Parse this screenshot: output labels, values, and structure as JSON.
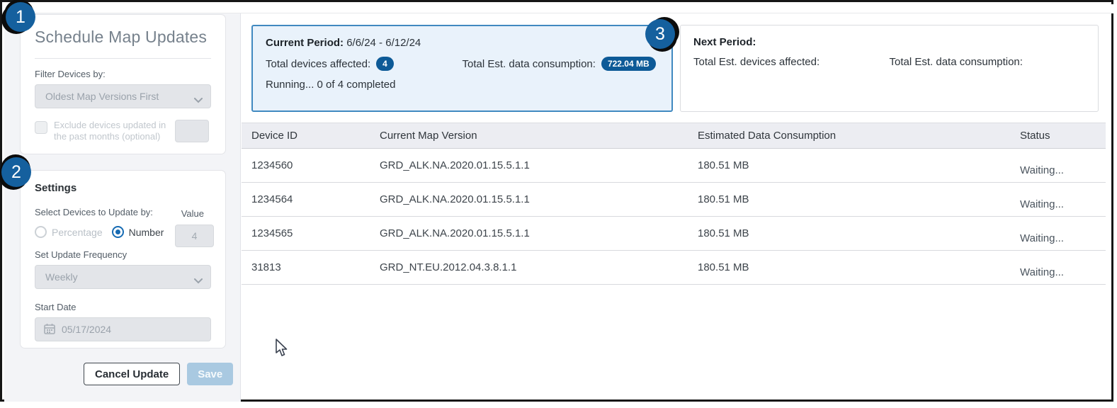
{
  "callouts": [
    "1",
    "2",
    "3"
  ],
  "sidebar": {
    "title": "Schedule Map Updates",
    "filter": {
      "label": "Filter Devices by:",
      "dropdown_value": "Oldest Map Versions First",
      "exclude_checkbox_label": "Exclude devices updated in the past months (optional)"
    },
    "settings": {
      "heading": "Settings",
      "select_label": "Select Devices to Update by:",
      "value_label": "Value",
      "radio_percentage": "Percentage",
      "radio_number": "Number",
      "value_input": "4",
      "frequency_label": "Set Update Frequency",
      "frequency_value": "Weekly",
      "start_date_label": "Start Date",
      "start_date_value": "05/17/2024"
    },
    "buttons": {
      "cancel": "Cancel Update",
      "save": "Save"
    }
  },
  "main": {
    "current_period": {
      "label": "Current Period:",
      "range": "6/6/24 - 6/12/24",
      "devices_label": "Total devices affected:",
      "devices_badge": "4",
      "consumption_label": "Total Est. data consumption:",
      "consumption_badge": "722.04 MB",
      "running": "Running... 0 of 4 completed"
    },
    "next_period": {
      "label": "Next Period:",
      "devices_label": "Total Est. devices affected:",
      "consumption_label": "Total Est. data consumption:"
    },
    "table": {
      "columns": [
        "Device ID",
        "Current Map Version",
        "Estimated Data Consumption",
        "Status"
      ],
      "rows": [
        {
          "device_id": "1234560",
          "map_version": "GRD_ALK.NA.2020.01.15.5.1.1",
          "consumption": "180.51 MB",
          "status": "Waiting..."
        },
        {
          "device_id": "1234564",
          "map_version": "GRD_ALK.NA.2020.01.15.5.1.1",
          "consumption": "180.51 MB",
          "status": "Waiting..."
        },
        {
          "device_id": "1234565",
          "map_version": "GRD_ALK.NA.2020.01.15.5.1.1",
          "consumption": "180.51 MB",
          "status": "Waiting..."
        },
        {
          "device_id": "31813",
          "map_version": "GRD_NT.EU.2012.04.3.8.1.1",
          "consumption": "180.51 MB",
          "status": "Waiting..."
        }
      ]
    }
  },
  "colors": {
    "callout_blue": "#15609e",
    "pill_blue": "#0d5a97",
    "current_panel_border": "#4089c0",
    "current_panel_bg": "#e9f2fb",
    "save_disabled_bg": "#a9c9e1"
  }
}
